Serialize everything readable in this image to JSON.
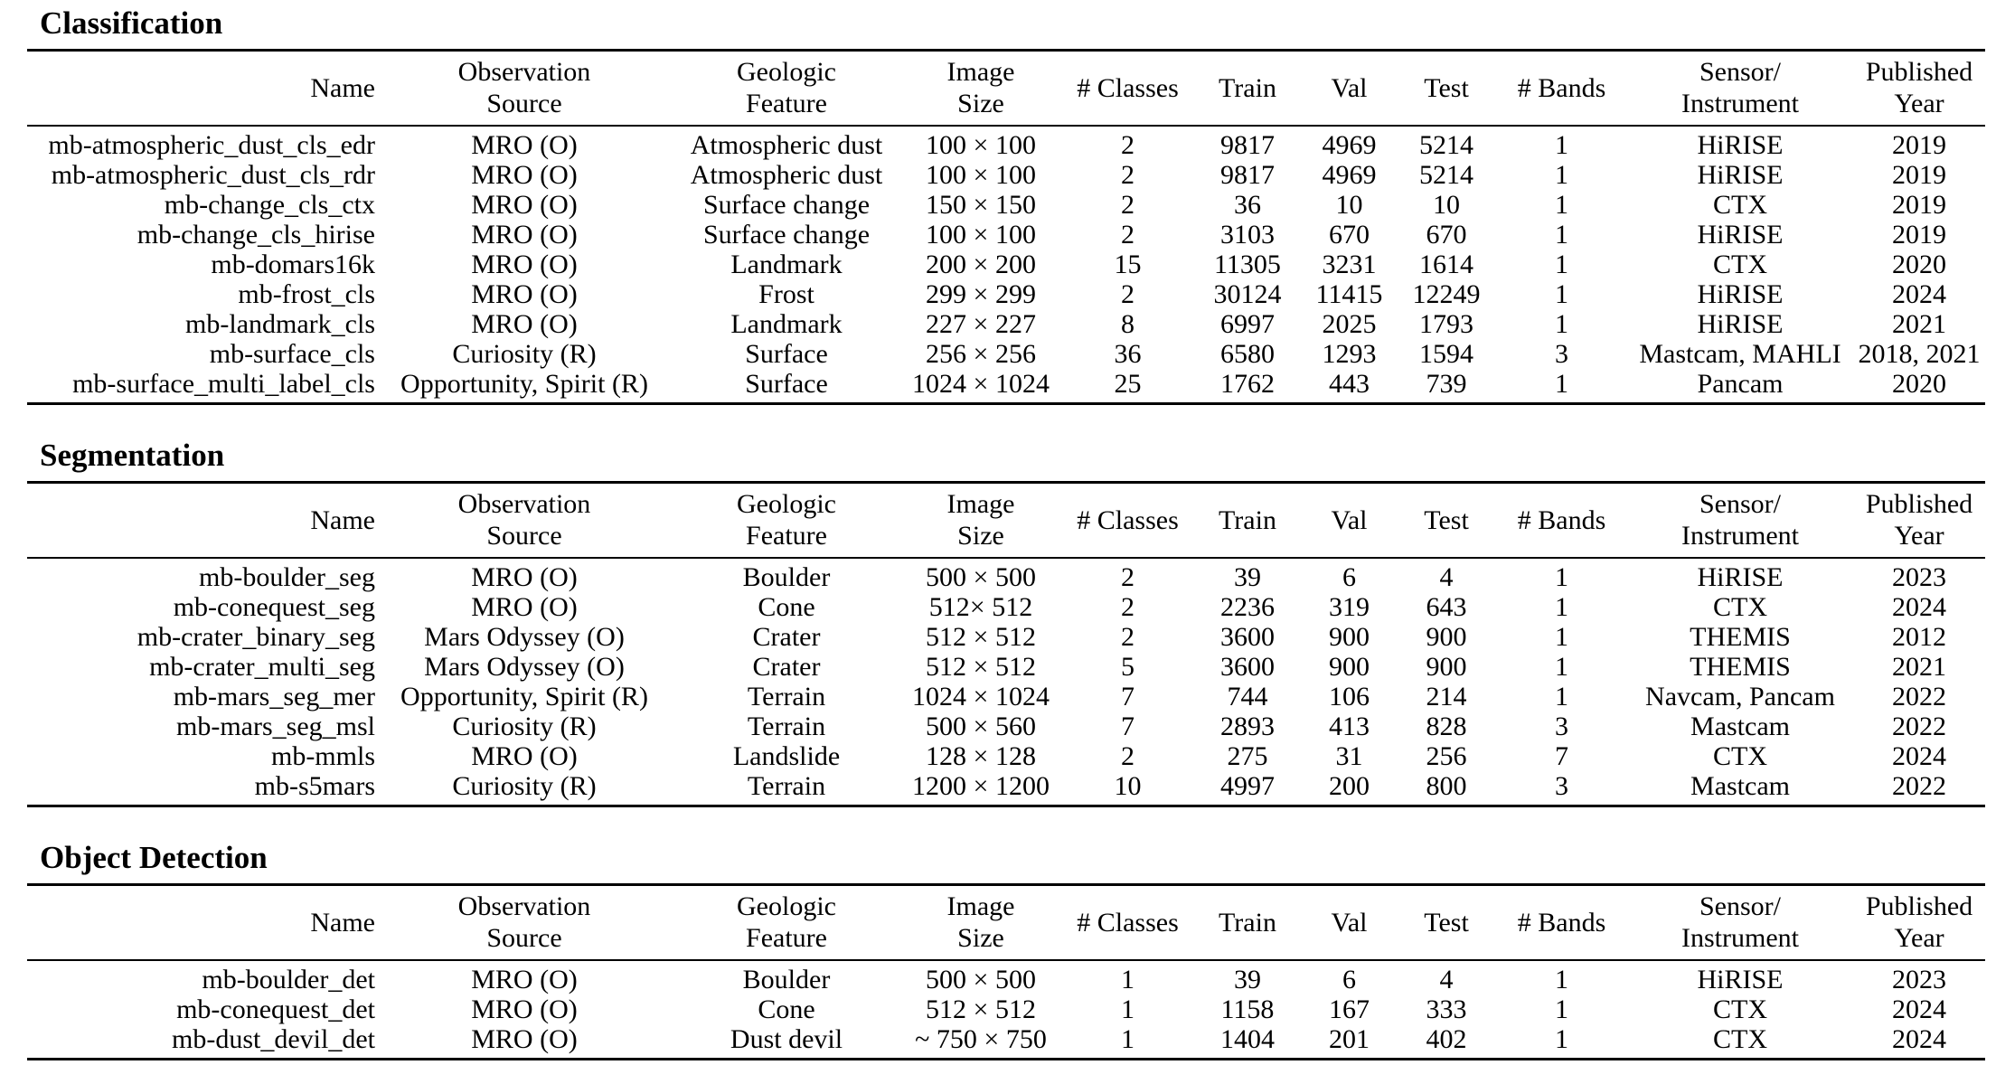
{
  "columns": [
    {
      "id": "name",
      "lines": [
        "Name"
      ]
    },
    {
      "id": "source",
      "lines": [
        "Observation",
        "Source"
      ]
    },
    {
      "id": "feature",
      "lines": [
        "Geologic",
        "Feature"
      ]
    },
    {
      "id": "size",
      "lines": [
        "Image",
        "Size"
      ]
    },
    {
      "id": "classes",
      "lines": [
        "# Classes"
      ]
    },
    {
      "id": "train",
      "lines": [
        "Train"
      ]
    },
    {
      "id": "val",
      "lines": [
        "Val"
      ]
    },
    {
      "id": "test",
      "lines": [
        "Test"
      ]
    },
    {
      "id": "bands",
      "lines": [
        "# Bands"
      ]
    },
    {
      "id": "sensor",
      "lines": [
        "Sensor/",
        "Instrument"
      ]
    },
    {
      "id": "year",
      "lines": [
        "Published",
        "Year"
      ]
    }
  ],
  "sections": [
    {
      "title": "Classification",
      "rows": [
        [
          "mb-atmospheric_dust_cls_edr",
          "MRO (O)",
          "Atmospheric dust",
          "100 × 100",
          "2",
          "9817",
          "4969",
          "5214",
          "1",
          "HiRISE",
          "2019"
        ],
        [
          "mb-atmospheric_dust_cls_rdr",
          "MRO (O)",
          "Atmospheric dust",
          "100 × 100",
          "2",
          "9817",
          "4969",
          "5214",
          "1",
          "HiRISE",
          "2019"
        ],
        [
          "mb-change_cls_ctx",
          "MRO (O)",
          "Surface change",
          "150 × 150",
          "2",
          "36",
          "10",
          "10",
          "1",
          "CTX",
          "2019"
        ],
        [
          "mb-change_cls_hirise",
          "MRO (O)",
          "Surface change",
          "100 × 100",
          "2",
          "3103",
          "670",
          "670",
          "1",
          "HiRISE",
          "2019"
        ],
        [
          "mb-domars16k",
          "MRO (O)",
          "Landmark",
          "200 × 200",
          "15",
          "11305",
          "3231",
          "1614",
          "1",
          "CTX",
          "2020"
        ],
        [
          "mb-frost_cls",
          "MRO (O)",
          "Frost",
          "299 × 299",
          "2",
          "30124",
          "11415",
          "12249",
          "1",
          "HiRISE",
          "2024"
        ],
        [
          "mb-landmark_cls",
          "MRO (O)",
          "Landmark",
          "227 × 227",
          "8",
          "6997",
          "2025",
          "1793",
          "1",
          "HiRISE",
          "2021"
        ],
        [
          "mb-surface_cls",
          "Curiosity (R)",
          "Surface",
          "256 × 256",
          "36",
          "6580",
          "1293",
          "1594",
          "3",
          "Mastcam, MAHLI",
          "2018, 2021"
        ],
        [
          "mb-surface_multi_label_cls",
          "Opportunity, Spirit (R)",
          "Surface",
          "1024 × 1024",
          "25",
          "1762",
          "443",
          "739",
          "1",
          "Pancam",
          "2020"
        ]
      ]
    },
    {
      "title": "Segmentation",
      "rows": [
        [
          "mb-boulder_seg",
          "MRO (O)",
          "Boulder",
          "500 × 500",
          "2",
          "39",
          "6",
          "4",
          "1",
          "HiRISE",
          "2023"
        ],
        [
          "mb-conequest_seg",
          "MRO (O)",
          "Cone",
          "512× 512",
          "2",
          "2236",
          "319",
          "643",
          "1",
          "CTX",
          "2024"
        ],
        [
          "mb-crater_binary_seg",
          "Mars Odyssey (O)",
          "Crater",
          "512 × 512",
          "2",
          "3600",
          "900",
          "900",
          "1",
          "THEMIS",
          "2012"
        ],
        [
          "mb-crater_multi_seg",
          "Mars Odyssey (O)",
          "Crater",
          "512 × 512",
          "5",
          "3600",
          "900",
          "900",
          "1",
          "THEMIS",
          "2021"
        ],
        [
          "mb-mars_seg_mer",
          "Opportunity, Spirit (R)",
          "Terrain",
          "1024 × 1024",
          "7",
          "744",
          "106",
          "214",
          "1",
          "Navcam, Pancam",
          "2022"
        ],
        [
          "mb-mars_seg_msl",
          "Curiosity (R)",
          "Terrain",
          "500 × 560",
          "7",
          "2893",
          "413",
          "828",
          "3",
          "Mastcam",
          "2022"
        ],
        [
          "mb-mmls",
          "MRO (O)",
          "Landslide",
          "128 × 128",
          "2",
          "275",
          "31",
          "256",
          "7",
          "CTX",
          "2024"
        ],
        [
          "mb-s5mars",
          "Curiosity (R)",
          "Terrain",
          "1200 × 1200",
          "10",
          "4997",
          "200",
          "800",
          "3",
          "Mastcam",
          "2022"
        ]
      ]
    },
    {
      "title": "Object Detection",
      "rows": [
        [
          "mb-boulder_det",
          "MRO (O)",
          "Boulder",
          "500 × 500",
          "1",
          "39",
          "6",
          "4",
          "1",
          "HiRISE",
          "2023"
        ],
        [
          "mb-conequest_det",
          "MRO (O)",
          "Cone",
          "512 × 512",
          "1",
          "1158",
          "167",
          "333",
          "1",
          "CTX",
          "2024"
        ],
        [
          "mb-dust_devil_det",
          "MRO (O)",
          "Dust devil",
          "~ 750 × 750",
          "1",
          "1404",
          "201",
          "402",
          "1",
          "CTX",
          "2024"
        ]
      ]
    }
  ]
}
